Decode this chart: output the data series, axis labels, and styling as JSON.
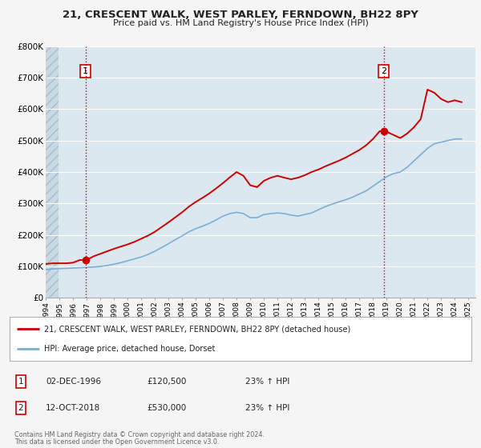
{
  "title": "21, CRESCENT WALK, WEST PARLEY, FERNDOWN, BH22 8PY",
  "subtitle": "Price paid vs. HM Land Registry's House Price Index (HPI)",
  "bg_color": "#f5f5f5",
  "plot_bg_color": "#dce8f0",
  "hatch_color": "#c8d8e4",
  "grid_color": "#ffffff",
  "red_color": "#cc0000",
  "blue_color": "#7bafd4",
  "ylim": [
    0,
    800000
  ],
  "yticks": [
    0,
    100000,
    200000,
    300000,
    400000,
    500000,
    600000,
    700000,
    800000
  ],
  "ytick_labels": [
    "£0",
    "£100K",
    "£200K",
    "£300K",
    "£400K",
    "£500K",
    "£600K",
    "£700K",
    "£800K"
  ],
  "xlim_start": 1994.0,
  "xlim_end": 2025.5,
  "xticks": [
    1994,
    1995,
    1996,
    1997,
    1998,
    1999,
    2000,
    2001,
    2002,
    2003,
    2004,
    2005,
    2006,
    2007,
    2008,
    2009,
    2010,
    2011,
    2012,
    2013,
    2014,
    2015,
    2016,
    2017,
    2018,
    2019,
    2020,
    2021,
    2022,
    2023,
    2024,
    2025
  ],
  "marker1_x": 1996.92,
  "marker1_y": 120500,
  "marker1_label": "1",
  "marker2_x": 2018.79,
  "marker2_y": 530000,
  "marker2_label": "2",
  "legend_line1": "21, CRESCENT WALK, WEST PARLEY, FERNDOWN, BH22 8PY (detached house)",
  "legend_line2": "HPI: Average price, detached house, Dorset",
  "annotation1_box_label": "1",
  "annotation1_date": "02-DEC-1996",
  "annotation1_price": "£120,500",
  "annotation1_hpi": "23% ↑ HPI",
  "annotation2_box_label": "2",
  "annotation2_date": "12-OCT-2018",
  "annotation2_price": "£530,000",
  "annotation2_hpi": "23% ↑ HPI",
  "footer1": "Contains HM Land Registry data © Crown copyright and database right 2024.",
  "footer2": "This data is licensed under the Open Government Licence v3.0.",
  "hpi_years": [
    1994.0,
    1994.5,
    1995.0,
    1995.5,
    1996.0,
    1996.5,
    1997.0,
    1997.5,
    1998.0,
    1998.5,
    1999.0,
    1999.5,
    2000.0,
    2000.5,
    2001.0,
    2001.5,
    2002.0,
    2002.5,
    2003.0,
    2003.5,
    2004.0,
    2004.5,
    2005.0,
    2005.5,
    2006.0,
    2006.5,
    2007.0,
    2007.5,
    2008.0,
    2008.5,
    2009.0,
    2009.5,
    2010.0,
    2010.5,
    2011.0,
    2011.5,
    2012.0,
    2012.5,
    2013.0,
    2013.5,
    2014.0,
    2014.5,
    2015.0,
    2015.5,
    2016.0,
    2016.5,
    2017.0,
    2017.5,
    2018.0,
    2018.5,
    2019.0,
    2019.5,
    2020.0,
    2020.5,
    2021.0,
    2021.5,
    2022.0,
    2022.5,
    2023.0,
    2023.5,
    2024.0,
    2024.5
  ],
  "hpi_values": [
    90000,
    92000,
    93000,
    94000,
    95000,
    96000,
    97000,
    98000,
    100000,
    103000,
    107000,
    112000,
    118000,
    124000,
    130000,
    138000,
    148000,
    160000,
    172000,
    185000,
    197000,
    210000,
    220000,
    228000,
    237000,
    248000,
    260000,
    268000,
    272000,
    268000,
    255000,
    255000,
    265000,
    268000,
    270000,
    268000,
    263000,
    260000,
    265000,
    270000,
    280000,
    290000,
    298000,
    305000,
    312000,
    320000,
    330000,
    340000,
    355000,
    370000,
    385000,
    395000,
    400000,
    415000,
    435000,
    455000,
    475000,
    490000,
    495000,
    500000,
    505000,
    505000
  ],
  "price_years": [
    1994.0,
    1994.5,
    1995.0,
    1995.5,
    1996.0,
    1996.5,
    1997.0,
    1997.5,
    1998.0,
    1998.5,
    1999.0,
    1999.5,
    2000.0,
    2000.5,
    2001.0,
    2001.5,
    2002.0,
    2002.5,
    2003.0,
    2003.5,
    2004.0,
    2004.5,
    2005.0,
    2005.5,
    2006.0,
    2006.5,
    2007.0,
    2007.5,
    2008.0,
    2008.5,
    2009.0,
    2009.5,
    2010.0,
    2010.5,
    2011.0,
    2011.5,
    2012.0,
    2012.5,
    2013.0,
    2013.5,
    2014.0,
    2014.5,
    2015.0,
    2015.5,
    2016.0,
    2016.5,
    2017.0,
    2017.5,
    2018.0,
    2018.5,
    2019.0,
    2019.5,
    2020.0,
    2020.5,
    2021.0,
    2021.5,
    2022.0,
    2022.5,
    2023.0,
    2023.5,
    2024.0,
    2024.5
  ],
  "price_values": [
    108000,
    110000,
    110000,
    110000,
    112000,
    120500,
    120500,
    132000,
    140000,
    148000,
    156000,
    163000,
    170000,
    178000,
    188000,
    198000,
    210000,
    225000,
    240000,
    256000,
    272000,
    290000,
    305000,
    318000,
    332000,
    348000,
    365000,
    383000,
    400000,
    388000,
    358000,
    352000,
    372000,
    382000,
    388000,
    382000,
    377000,
    382000,
    390000,
    400000,
    408000,
    418000,
    427000,
    436000,
    446000,
    458000,
    470000,
    485000,
    505000,
    530000,
    528000,
    518000,
    508000,
    522000,
    542000,
    568000,
    662000,
    652000,
    632000,
    622000,
    628000,
    622000
  ]
}
